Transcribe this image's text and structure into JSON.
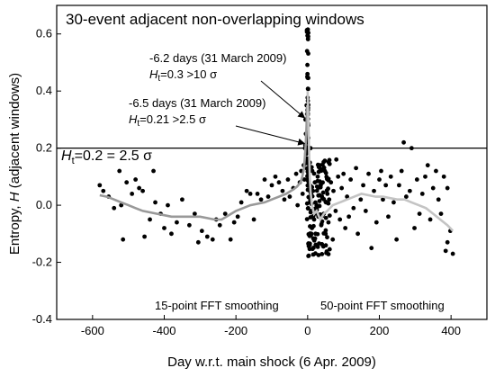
{
  "chart_data": {
    "type": "scatter",
    "title": "30-event adjacent non-overlapping windows",
    "xlabel": "Day w.r.t. main shock (6 Apr. 2009)",
    "ylabel": "Entropy, H (adjacent windows)",
    "ylabel_prefix": "Entropy, ",
    "ylabel_var": "H",
    "ylabel_suffix": " (adjacent windows)",
    "xlim": [
      -700,
      500
    ],
    "ylim": [
      -0.4,
      0.7
    ],
    "x_ticks": [
      -600,
      -400,
      -200,
      0,
      200,
      400
    ],
    "x_tick_labels": [
      "-600",
      "-400",
      "-200",
      "0",
      "200",
      "400"
    ],
    "y_ticks": [
      -0.4,
      -0.2,
      0.0,
      0.2,
      0.4,
      0.6
    ],
    "y_tick_labels": [
      "-0.4",
      "-0.2",
      "0.0",
      "0.2",
      "0.4",
      "0.6"
    ],
    "grid": false,
    "threshold": {
      "y": 0.2,
      "label_var": "H",
      "label_sub": "t",
      "label_rest": "=0.2 = 2.5 σ"
    },
    "annotations": [
      {
        "line1": "-6.2 days (31 March 2009)",
        "line2_var": "H",
        "line2_sub": "t",
        "line2_rest": "=0.3 >10 σ",
        "target_x": -6.2,
        "target_y": 0.3
      },
      {
        "line1": "-6.5 days (31 March 2009)",
        "line2_var": "H",
        "line2_sub": "t",
        "line2_rest": "=0.21 >2.5 σ",
        "target_x": -6.5,
        "target_y": 0.21
      }
    ],
    "smoothing_labels": [
      "15-point FFT smoothing",
      "50-point FFT smoothing"
    ],
    "pre_points": [
      [
        -580,
        0.07
      ],
      [
        -570,
        0.05
      ],
      [
        -555,
        0.03
      ],
      [
        -540,
        -0.01
      ],
      [
        -525,
        0.12
      ],
      [
        -520,
        0.0
      ],
      [
        -515,
        -0.12
      ],
      [
        -505,
        0.08
      ],
      [
        -490,
        0.04
      ],
      [
        -480,
        0.09
      ],
      [
        -470,
        0.06
      ],
      [
        -460,
        0.05
      ],
      [
        -455,
        -0.11
      ],
      [
        -440,
        -0.05
      ],
      [
        -430,
        0.12
      ],
      [
        -425,
        0.01
      ],
      [
        -410,
        -0.03
      ],
      [
        -400,
        -0.08
      ],
      [
        -390,
        0.0
      ],
      [
        -380,
        -0.1
      ],
      [
        -365,
        -0.06
      ],
      [
        -350,
        0.02
      ],
      [
        -330,
        -0.07
      ],
      [
        -315,
        -0.03
      ],
      [
        -305,
        -0.13
      ],
      [
        -295,
        -0.09
      ],
      [
        -280,
        -0.11
      ],
      [
        -265,
        -0.12
      ],
      [
        -255,
        -0.05
      ],
      [
        -245,
        -0.07
      ],
      [
        -230,
        -0.03
      ],
      [
        -215,
        -0.12
      ],
      [
        -205,
        -0.06
      ],
      [
        -195,
        -0.04
      ],
      [
        -185,
        0.01
      ],
      [
        -170,
        0.05
      ],
      [
        -160,
        0.04
      ],
      [
        -150,
        -0.05
      ],
      [
        -140,
        0.04
      ],
      [
        -130,
        0.02
      ],
      [
        -120,
        0.09
      ],
      [
        -110,
        0.03
      ],
      [
        -100,
        0.07
      ],
      [
        -90,
        0.1
      ],
      [
        -80,
        0.08
      ],
      [
        -70,
        0.05
      ],
      [
        -65,
        0.02
      ],
      [
        -55,
        0.09
      ],
      [
        -50,
        0.03
      ],
      [
        -40,
        0.06
      ],
      [
        -32,
        0.11
      ],
      [
        -28,
        0.0
      ],
      [
        -22,
        0.08
      ],
      [
        -18,
        0.12
      ],
      [
        -14,
        0.04
      ],
      [
        -11,
        0.14
      ],
      [
        -9,
        0.09
      ],
      [
        -7.5,
        0.2
      ],
      [
        -6.5,
        0.21
      ],
      [
        -6.2,
        0.3
      ],
      [
        -5,
        0.25
      ],
      [
        -4,
        0.18
      ],
      [
        -3,
        0.35
      ],
      [
        -2,
        0.22
      ],
      [
        -1,
        0.45
      ]
    ],
    "post_points": [
      [
        8,
        0.2
      ],
      [
        10,
        -0.02
      ],
      [
        12,
        -0.08
      ],
      [
        15,
        0.05
      ],
      [
        18,
        -0.05
      ],
      [
        20,
        0.08
      ],
      [
        22,
        -0.1
      ],
      [
        25,
        0.0
      ],
      [
        28,
        0.1
      ],
      [
        30,
        -0.04
      ],
      [
        35,
        0.14
      ],
      [
        38,
        -0.07
      ],
      [
        40,
        0.03
      ],
      [
        45,
        -0.03
      ],
      [
        48,
        0.12
      ],
      [
        50,
        -0.1
      ],
      [
        55,
        0.04
      ],
      [
        58,
        -0.06
      ],
      [
        60,
        0.02
      ],
      [
        65,
        0.08
      ],
      [
        70,
        -0.12
      ],
      [
        72,
        0.05
      ],
      [
        78,
        -0.02
      ],
      [
        80,
        0.16
      ],
      [
        85,
        0.1
      ],
      [
        90,
        -0.05
      ],
      [
        95,
        0.06
      ],
      [
        100,
        0.11
      ],
      [
        105,
        -0.08
      ],
      [
        110,
        0.03
      ],
      [
        115,
        -0.04
      ],
      [
        120,
        0.09
      ],
      [
        128,
        -0.01
      ],
      [
        135,
        0.13
      ],
      [
        140,
        -0.1
      ],
      [
        148,
        0.02
      ],
      [
        155,
        0.07
      ],
      [
        162,
        -0.02
      ],
      [
        170,
        0.11
      ],
      [
        178,
        -0.15
      ],
      [
        185,
        0.05
      ],
      [
        192,
        -0.06
      ],
      [
        200,
        0.09
      ],
      [
        205,
        0.12
      ],
      [
        210,
        0.02
      ],
      [
        218,
        0.07
      ],
      [
        225,
        -0.04
      ],
      [
        232,
        0.1
      ],
      [
        240,
        0.01
      ],
      [
        248,
        -0.12
      ],
      [
        255,
        0.07
      ],
      [
        262,
        0.12
      ],
      [
        268,
        0.22
      ],
      [
        275,
        0.03
      ],
      [
        285,
        0.05
      ],
      [
        290,
        0.2
      ],
      [
        298,
        -0.08
      ],
      [
        305,
        0.09
      ],
      [
        312,
        -0.03
      ],
      [
        320,
        0.04
      ],
      [
        328,
        0.1
      ],
      [
        335,
        0.14
      ],
      [
        342,
        -0.05
      ],
      [
        350,
        0.06
      ],
      [
        358,
        0.12
      ],
      [
        365,
        0.02
      ],
      [
        372,
        -0.03
      ],
      [
        380,
        0.1
      ],
      [
        385,
        -0.16
      ],
      [
        390,
        0.06
      ],
      [
        398,
        -0.09
      ],
      [
        405,
        -0.17
      ],
      [
        390,
        -0.13
      ]
    ],
    "smooth_pre": [
      [
        -580,
        0.035
      ],
      [
        -560,
        0.03
      ],
      [
        -540,
        0.02
      ],
      [
        -520,
        0.01
      ],
      [
        -500,
        0.0
      ],
      [
        -480,
        -0.01
      ],
      [
        -460,
        -0.02
      ],
      [
        -440,
        -0.025
      ],
      [
        -420,
        -0.03
      ],
      [
        -400,
        -0.035
      ],
      [
        -380,
        -0.04
      ],
      [
        -360,
        -0.04
      ],
      [
        -340,
        -0.04
      ],
      [
        -320,
        -0.04
      ],
      [
        -300,
        -0.04
      ],
      [
        -280,
        -0.045
      ],
      [
        -260,
        -0.05
      ],
      [
        -240,
        -0.05
      ],
      [
        -220,
        -0.035
      ],
      [
        -200,
        -0.02
      ],
      [
        -180,
        -0.01
      ],
      [
        -160,
        0.0
      ],
      [
        -140,
        0.005
      ],
      [
        -120,
        0.01
      ],
      [
        -100,
        0.02
      ],
      [
        -80,
        0.03
      ],
      [
        -60,
        0.04
      ],
      [
        -40,
        0.055
      ],
      [
        -30,
        0.065
      ],
      [
        -20,
        0.08
      ],
      [
        -15,
        0.1
      ],
      [
        -10,
        0.13
      ],
      [
        -7,
        0.18
      ],
      [
        -5,
        0.22
      ],
      [
        -3,
        0.28
      ],
      [
        -2,
        0.33
      ],
      [
        -1,
        0.35
      ]
    ],
    "smooth_post": [
      [
        0,
        0.4
      ],
      [
        2,
        0.3
      ],
      [
        4,
        0.2
      ],
      [
        6,
        0.1
      ],
      [
        8,
        0.05
      ],
      [
        12,
        0.0
      ],
      [
        18,
        -0.03
      ],
      [
        25,
        -0.02
      ],
      [
        35,
        -0.05
      ],
      [
        45,
        -0.03
      ],
      [
        55,
        -0.02
      ],
      [
        70,
        0.0
      ],
      [
        90,
        0.01
      ],
      [
        110,
        0.02
      ],
      [
        130,
        0.03
      ],
      [
        150,
        0.04
      ],
      [
        170,
        0.035
      ],
      [
        190,
        0.03
      ],
      [
        210,
        0.03
      ],
      [
        230,
        0.025
      ],
      [
        250,
        0.02
      ],
      [
        270,
        0.02
      ],
      [
        290,
        0.01
      ],
      [
        310,
        0.0
      ],
      [
        330,
        -0.01
      ],
      [
        350,
        -0.03
      ],
      [
        370,
        -0.05
      ],
      [
        390,
        -0.07
      ],
      [
        405,
        -0.09
      ]
    ]
  }
}
